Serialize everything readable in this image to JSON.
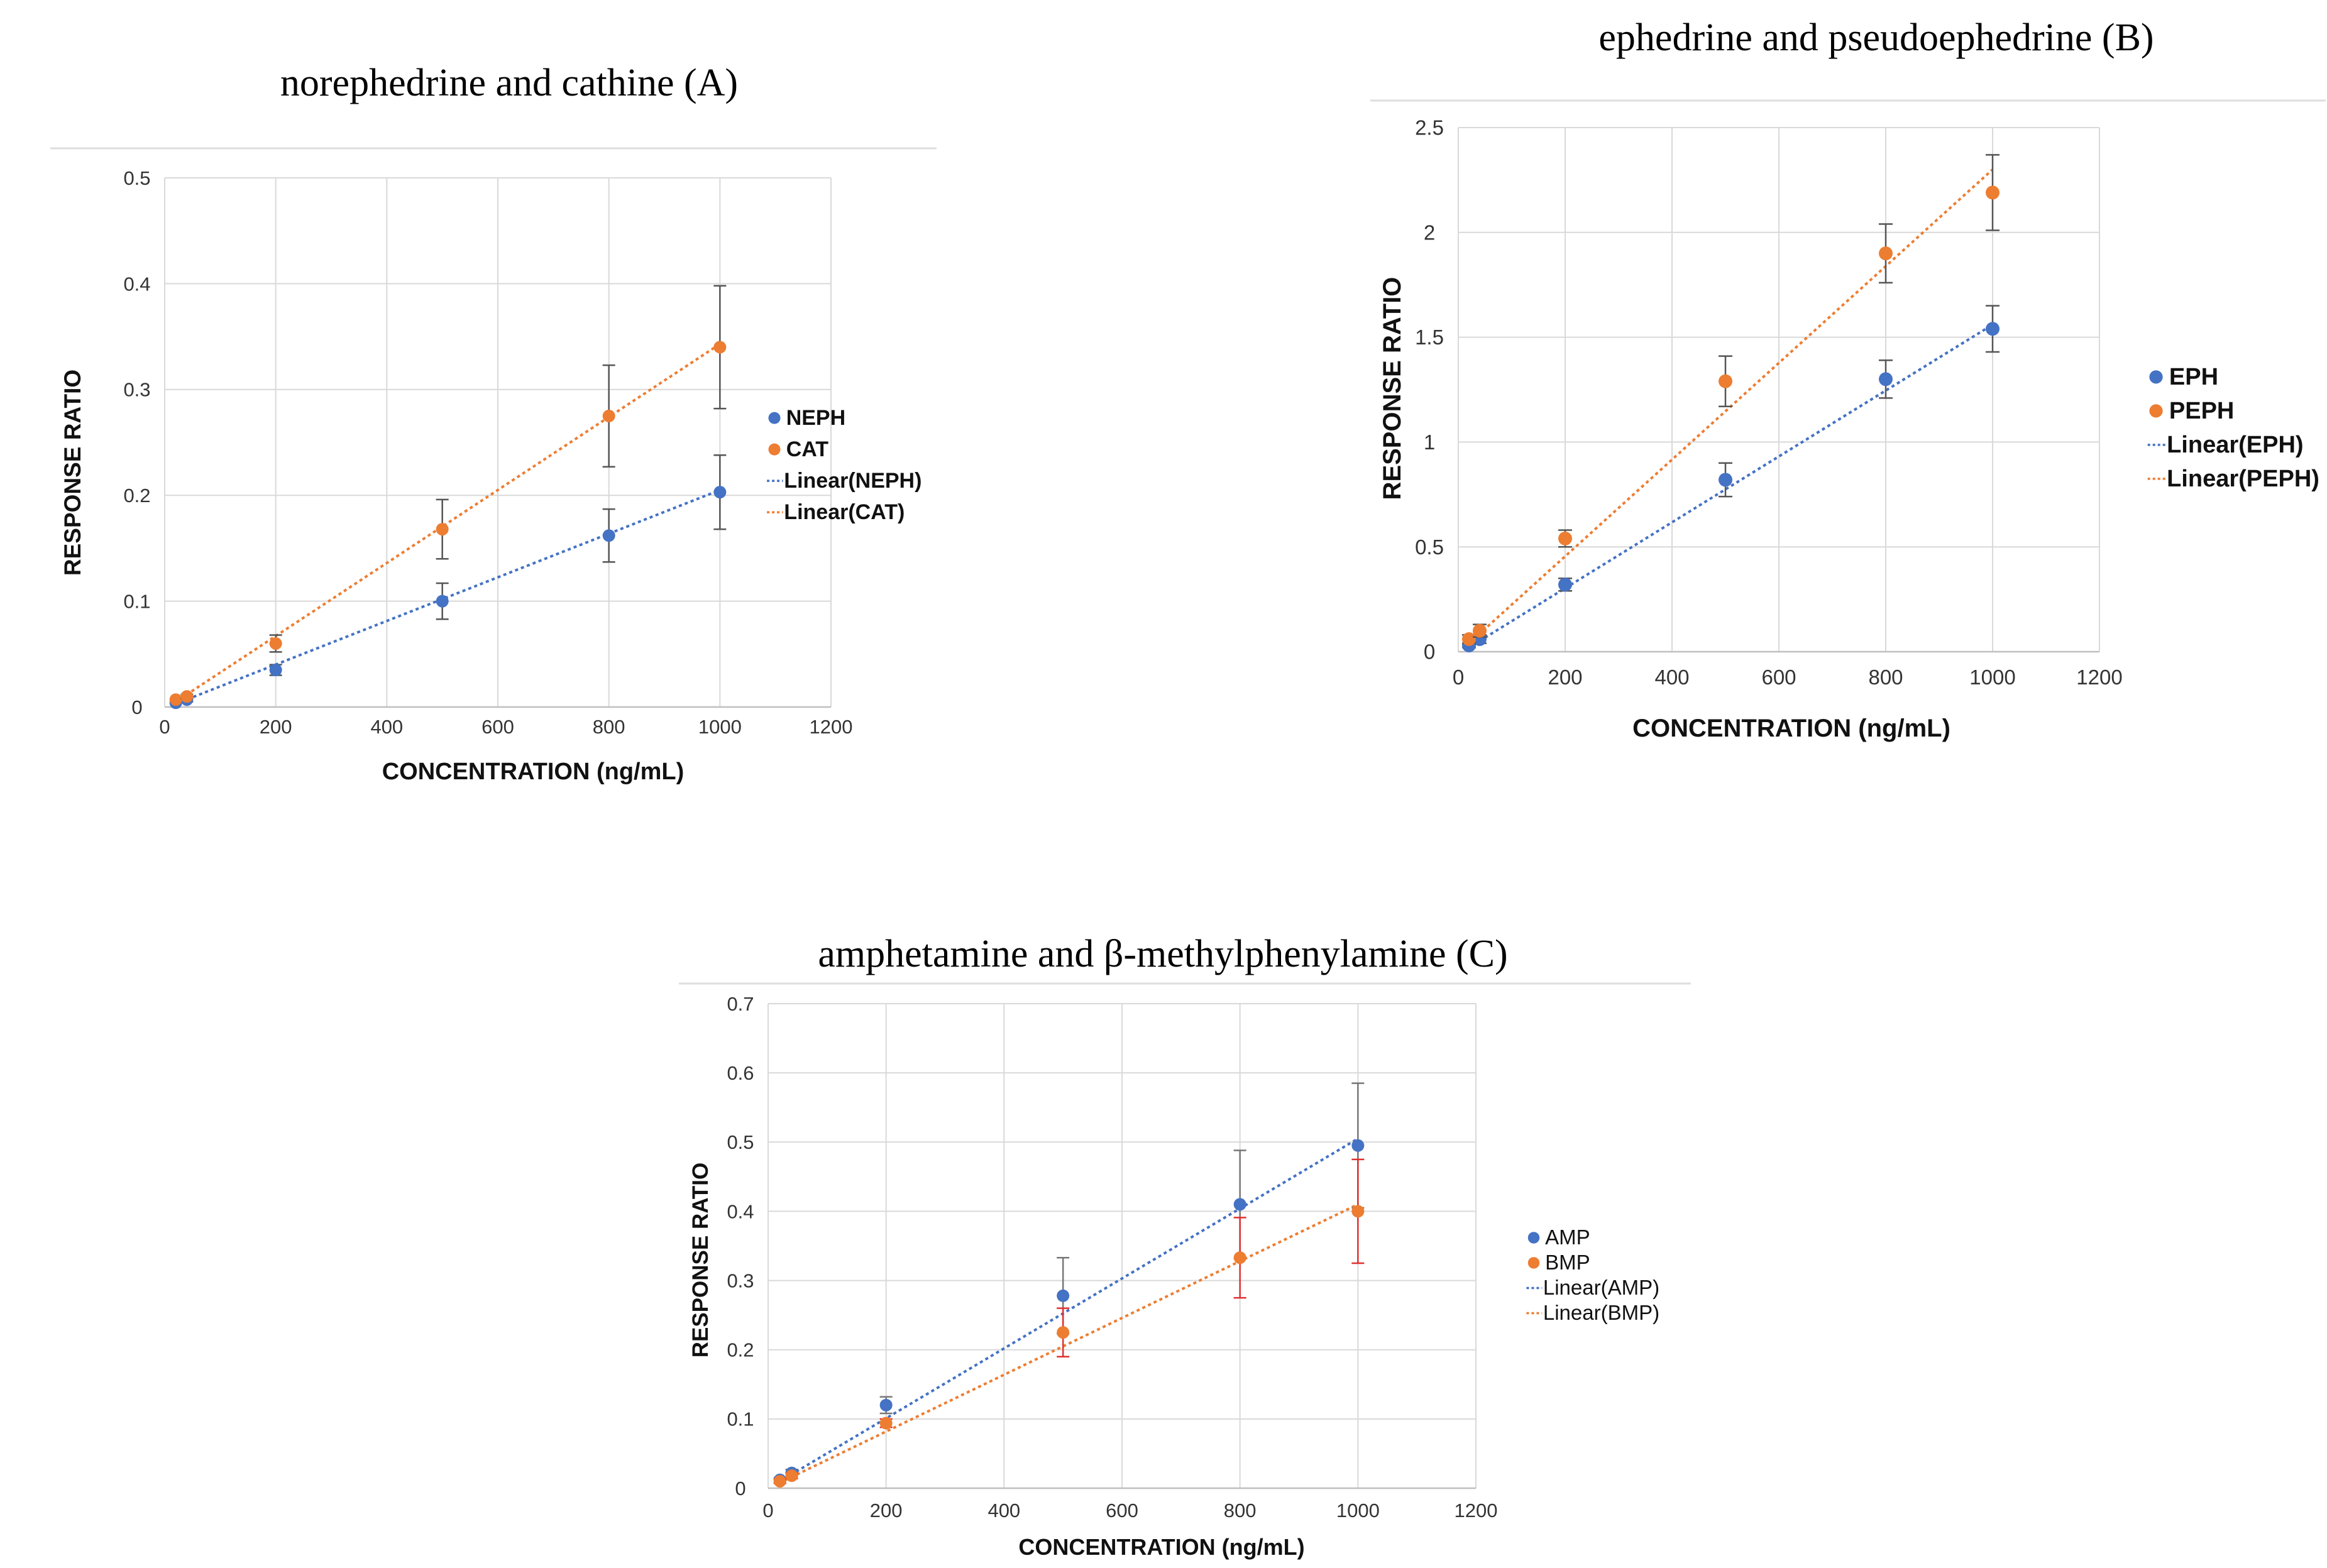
{
  "chart_data": [
    {
      "type": "scatter",
      "title": "norephedrine and cathine (A)",
      "xlabel": "CONCENTRATION (ng/mL)",
      "ylabel": "RESPONSE RATIO",
      "xlim": [
        0,
        1200
      ],
      "ylim": [
        0,
        0.5
      ],
      "xticks": [
        "0",
        "200",
        "400",
        "600",
        "800",
        "1000",
        "1200"
      ],
      "yticks": [
        "0",
        "0.1",
        "0.2",
        "0.3",
        "0.4",
        "0.5"
      ],
      "grid": true,
      "legend_position": "right",
      "legend_bold": true,
      "series": [
        {
          "name": "NEPH",
          "color": "#4472C4",
          "x": [
            20,
            40,
            200,
            500,
            800,
            1000
          ],
          "y": [
            0.004,
            0.007,
            0.035,
            0.1,
            0.162,
            0.203
          ],
          "error": [
            0.001,
            0.002,
            0.005,
            0.017,
            0.025,
            0.035
          ],
          "errorbar_color": "#555555",
          "trendline": {
            "name": "Linear(NEPH)",
            "from": [
              20,
              0.003
            ],
            "to": [
              1000,
              0.205
            ]
          }
        },
        {
          "name": "CAT",
          "color": "#ED7D31",
          "x": [
            20,
            40,
            200,
            500,
            800,
            1000
          ],
          "y": [
            0.007,
            0.01,
            0.06,
            0.168,
            0.275,
            0.34
          ],
          "error": [
            0.001,
            0.002,
            0.008,
            0.028,
            0.048,
            0.058
          ],
          "errorbar_color": "#555555",
          "trendline": {
            "name": "Linear(CAT)",
            "from": [
              20,
              0.005
            ],
            "to": [
              1000,
              0.343
            ]
          }
        }
      ]
    },
    {
      "type": "scatter",
      "title": "ephedrine and pseudoephedrine (B)",
      "xlabel": "CONCENTRATION (ng/mL)",
      "ylabel": "RESPONSE RATIO",
      "xlim": [
        0,
        1200
      ],
      "ylim": [
        0,
        2.5
      ],
      "xticks": [
        "0",
        "200",
        "400",
        "600",
        "800",
        "1000",
        "1200"
      ],
      "yticks": [
        "0",
        "0.5",
        "1",
        "1.5",
        "2",
        "2.5"
      ],
      "grid": true,
      "legend_position": "right",
      "legend_bold": true,
      "series": [
        {
          "name": "EPH",
          "color": "#4472C4",
          "x": [
            20,
            40,
            200,
            500,
            800,
            1000
          ],
          "y": [
            0.03,
            0.06,
            0.32,
            0.82,
            1.3,
            1.54
          ],
          "error": [
            0.01,
            0.02,
            0.03,
            0.08,
            0.09,
            0.11
          ],
          "errorbar_color": "#555555",
          "trendline": {
            "name": "Linear(EPH)",
            "from": [
              20,
              0.02
            ],
            "to": [
              1000,
              1.56
            ]
          }
        },
        {
          "name": "PEPH",
          "color": "#ED7D31",
          "x": [
            20,
            40,
            200,
            500,
            800,
            1000
          ],
          "y": [
            0.06,
            0.1,
            0.54,
            1.29,
            1.9,
            2.19
          ],
          "error": [
            0.02,
            0.03,
            0.04,
            0.12,
            0.14,
            0.18
          ],
          "errorbar_color": "#555555",
          "trendline": {
            "name": "Linear(PEPH)",
            "from": [
              20,
              0.04
            ],
            "to": [
              1000,
              2.3
            ]
          }
        }
      ]
    },
    {
      "type": "scatter",
      "title": "amphetamine and β-methylphenylamine (C)",
      "xlabel": "CONCENTRATION (ng/mL)",
      "ylabel": "RESPONSE RATIO",
      "xlim": [
        0,
        1200
      ],
      "ylim": [
        0,
        0.7
      ],
      "xticks": [
        "0",
        "200",
        "400",
        "600",
        "800",
        "1000",
        "1200"
      ],
      "yticks": [
        "0",
        "0.1",
        "0.2",
        "0.3",
        "0.4",
        "0.5",
        "0.6",
        "0.7"
      ],
      "grid": true,
      "legend_position": "right",
      "legend_bold": false,
      "series": [
        {
          "name": "AMP",
          "color": "#4472C4",
          "x": [
            20,
            40,
            200,
            500,
            800,
            1000
          ],
          "y": [
            0.012,
            0.022,
            0.12,
            0.278,
            0.41,
            0.495
          ],
          "error": [
            0.003,
            0.005,
            0.012,
            0.055,
            0.078,
            0.09
          ],
          "errorbar_color": "#777777",
          "trendline": {
            "name": "Linear(AMP)",
            "from": [
              20,
              0.01
            ],
            "to": [
              1000,
              0.505
            ]
          }
        },
        {
          "name": "BMP",
          "color": "#ED7D31",
          "x": [
            20,
            40,
            200,
            500,
            800,
            1000
          ],
          "y": [
            0.01,
            0.018,
            0.094,
            0.225,
            0.333,
            0.4
          ],
          "error": [
            0.003,
            0.004,
            0.006,
            0.035,
            0.058,
            0.075
          ],
          "errorbar_color": "#E03030",
          "trendline": {
            "name": "Linear(BMP)",
            "from": [
              20,
              0.008
            ],
            "to": [
              1000,
              0.41
            ]
          }
        }
      ]
    }
  ]
}
